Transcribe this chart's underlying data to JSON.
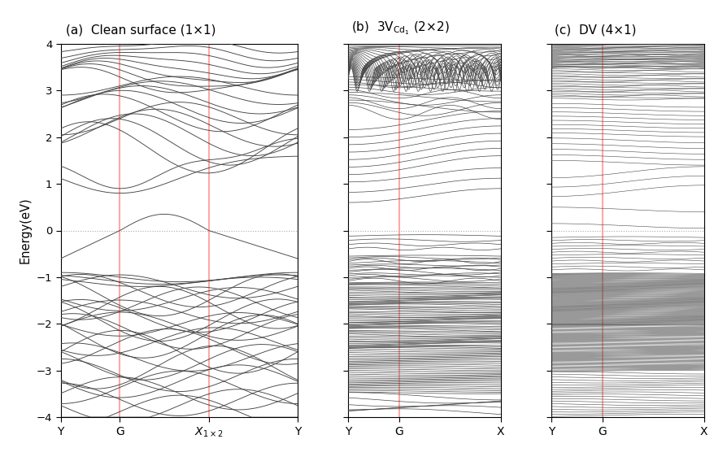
{
  "title_a": "(a)  Clean surface (1×1)",
  "title_b": "(b)  3V",
  "title_b_sub": "Cd",
  "title_b_subsub": "1",
  "title_b_rest": " (2×2)",
  "title_c": "(c)  DV (4×1)",
  "ylabel": "Energy(eV)",
  "ylim": [
    -4.0,
    4.0
  ],
  "yticks": [
    -4.0,
    -3.0,
    -2.0,
    -1.0,
    0.0,
    1.0,
    2.0,
    3.0,
    4.0
  ],
  "fermi_color": "#aaaaaa",
  "vline_color": "#ff9999",
  "band_color": "#444444",
  "band_lw": 0.65,
  "n_points": 300,
  "background": "#ffffff"
}
